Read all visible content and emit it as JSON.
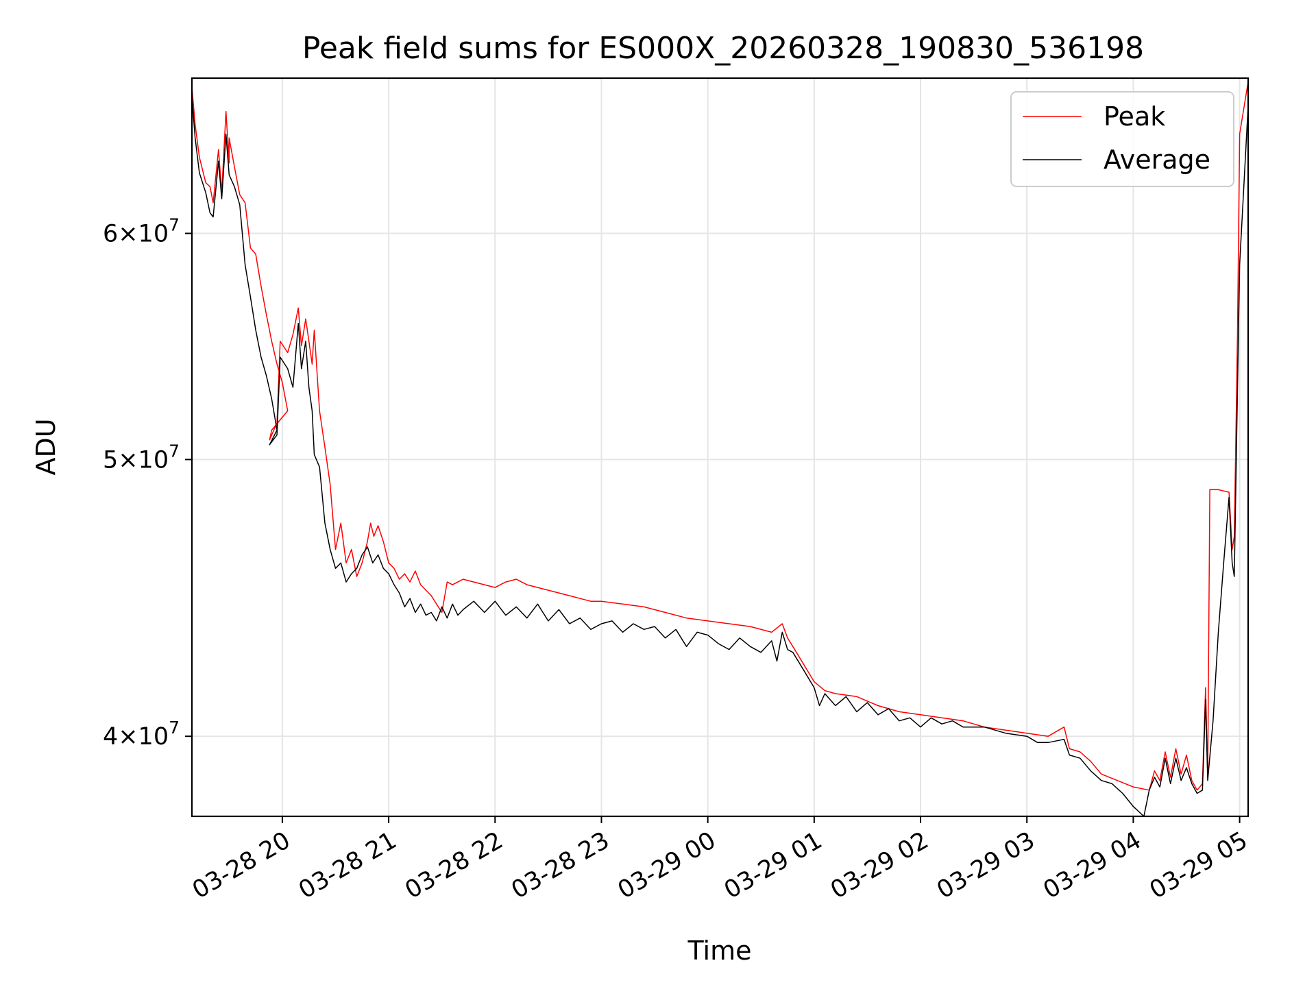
{
  "chart_data": {
    "type": "line",
    "title": "Peak field sums for ES000X_20260328_190830_536198",
    "xlabel": "Time",
    "ylabel": "ADU",
    "y_scale": "log",
    "xlim_hours": [
      -0.85,
      9.08
    ],
    "ylim": [
      37500000,
      68000000
    ],
    "x_ticks": [
      {
        "label": "03-28 20",
        "hour": 0
      },
      {
        "label": "03-28 21",
        "hour": 1
      },
      {
        "label": "03-28 22",
        "hour": 2
      },
      {
        "label": "03-28 23",
        "hour": 3
      },
      {
        "label": "03-29 00",
        "hour": 4
      },
      {
        "label": "03-29 01",
        "hour": 5
      },
      {
        "label": "03-29 02",
        "hour": 6
      },
      {
        "label": "03-29 03",
        "hour": 7
      },
      {
        "label": "03-29 04",
        "hour": 8
      },
      {
        "label": "03-29 05",
        "hour": 9
      }
    ],
    "y_ticks": [
      {
        "value": 40000000,
        "base": "4",
        "sep": "×",
        "power": "10",
        "exp": "7"
      },
      {
        "value": 50000000,
        "base": "5",
        "sep": "×",
        "power": "10",
        "exp": "7"
      },
      {
        "value": 60000000,
        "base": "6",
        "sep": "×",
        "power": "10",
        "exp": "7"
      }
    ],
    "grid": true,
    "legend_position": "top-right",
    "series": [
      {
        "name": "Peak",
        "color": "#ff0000",
        "points": [
          [
            -0.85,
            67.5
          ],
          [
            -0.82,
            65.5
          ],
          [
            -0.78,
            63.8
          ],
          [
            -0.72,
            62.5
          ],
          [
            -0.68,
            62.3
          ],
          [
            -0.65,
            61.5
          ],
          [
            -0.6,
            64.2
          ],
          [
            -0.57,
            62.0
          ],
          [
            -0.53,
            66.2
          ],
          [
            -0.5,
            63.5
          ],
          [
            -0.5,
            64.8
          ],
          [
            -0.45,
            63.3
          ],
          [
            -0.4,
            61.9
          ],
          [
            -0.35,
            61.5
          ],
          [
            -0.3,
            59.3
          ],
          [
            -0.25,
            59.0
          ],
          [
            -0.2,
            57.5
          ],
          [
            -0.15,
            56.2
          ],
          [
            -0.1,
            55.0
          ],
          [
            -0.05,
            54.0
          ],
          [
            0.0,
            53.2
          ],
          [
            0.05,
            52.0
          ],
          [
            -0.1,
            51.2
          ],
          [
            -0.12,
            50.8
          ],
          [
            -0.05,
            51.5
          ],
          [
            -0.02,
            55.0
          ],
          [
            0.05,
            54.5
          ],
          [
            0.1,
            55.3
          ],
          [
            0.15,
            56.5
          ],
          [
            0.18,
            54.8
          ],
          [
            0.22,
            56.0
          ],
          [
            0.25,
            55.0
          ],
          [
            0.28,
            54.0
          ],
          [
            0.3,
            55.5
          ],
          [
            0.35,
            52.0
          ],
          [
            0.4,
            50.5
          ],
          [
            0.45,
            49.0
          ],
          [
            0.5,
            46.5
          ],
          [
            0.55,
            47.5
          ],
          [
            0.6,
            46.0
          ],
          [
            0.65,
            46.5
          ],
          [
            0.7,
            45.5
          ],
          [
            0.75,
            46.0
          ],
          [
            0.8,
            46.8
          ],
          [
            0.83,
            47.5
          ],
          [
            0.86,
            47.0
          ],
          [
            0.9,
            47.4
          ],
          [
            0.95,
            46.8
          ],
          [
            1.0,
            46.0
          ],
          [
            1.05,
            45.8
          ],
          [
            1.1,
            45.4
          ],
          [
            1.15,
            45.6
          ],
          [
            1.2,
            45.3
          ],
          [
            1.25,
            45.7
          ],
          [
            1.3,
            45.2
          ],
          [
            1.35,
            45.0
          ],
          [
            1.4,
            44.8
          ],
          [
            1.45,
            44.5
          ],
          [
            1.5,
            44.2
          ],
          [
            1.55,
            45.3
          ],
          [
            1.6,
            45.2
          ],
          [
            1.7,
            45.4
          ],
          [
            1.8,
            45.3
          ],
          [
            1.9,
            45.2
          ],
          [
            2.0,
            45.1
          ],
          [
            2.1,
            45.3
          ],
          [
            2.2,
            45.4
          ],
          [
            2.3,
            45.2
          ],
          [
            2.4,
            45.1
          ],
          [
            2.5,
            45.0
          ],
          [
            2.6,
            44.9
          ],
          [
            2.7,
            44.8
          ],
          [
            2.8,
            44.7
          ],
          [
            2.9,
            44.6
          ],
          [
            3.0,
            44.6
          ],
          [
            3.2,
            44.5
          ],
          [
            3.4,
            44.4
          ],
          [
            3.6,
            44.2
          ],
          [
            3.8,
            44.0
          ],
          [
            4.0,
            43.9
          ],
          [
            4.2,
            43.8
          ],
          [
            4.4,
            43.7
          ],
          [
            4.6,
            43.5
          ],
          [
            4.7,
            43.8
          ],
          [
            4.75,
            43.3
          ],
          [
            4.8,
            43.0
          ],
          [
            4.9,
            42.4
          ],
          [
            5.0,
            41.8
          ],
          [
            5.1,
            41.5
          ],
          [
            5.2,
            41.4
          ],
          [
            5.4,
            41.3
          ],
          [
            5.6,
            41.0
          ],
          [
            5.8,
            40.8
          ],
          [
            6.0,
            40.7
          ],
          [
            6.2,
            40.6
          ],
          [
            6.4,
            40.5
          ],
          [
            6.6,
            40.3
          ],
          [
            6.8,
            40.2
          ],
          [
            7.0,
            40.1
          ],
          [
            7.2,
            40.0
          ],
          [
            7.35,
            40.3
          ],
          [
            7.4,
            39.6
          ],
          [
            7.5,
            39.5
          ],
          [
            7.6,
            39.2
          ],
          [
            7.7,
            38.8
          ],
          [
            7.85,
            38.6
          ],
          [
            8.0,
            38.4
          ],
          [
            8.15,
            38.3
          ],
          [
            8.2,
            38.9
          ],
          [
            8.25,
            38.6
          ],
          [
            8.3,
            39.5
          ],
          [
            8.35,
            38.7
          ],
          [
            8.4,
            39.6
          ],
          [
            8.45,
            38.8
          ],
          [
            8.5,
            39.4
          ],
          [
            8.55,
            38.6
          ],
          [
            8.6,
            38.3
          ],
          [
            8.65,
            38.5
          ],
          [
            8.68,
            41.6
          ],
          [
            8.7,
            38.7
          ],
          [
            8.72,
            48.8
          ],
          [
            8.8,
            48.8
          ],
          [
            8.9,
            48.7
          ],
          [
            8.93,
            46.5
          ],
          [
            8.95,
            47.0
          ],
          [
            8.98,
            55.4
          ],
          [
            9.0,
            65.0
          ],
          [
            9.08,
            67.8
          ]
        ]
      },
      {
        "name": "Average",
        "color": "#000000",
        "points": [
          [
            -0.85,
            67.0
          ],
          [
            -0.82,
            64.8
          ],
          [
            -0.78,
            63.0
          ],
          [
            -0.72,
            62.0
          ],
          [
            -0.68,
            61.0
          ],
          [
            -0.65,
            60.8
          ],
          [
            -0.6,
            63.6
          ],
          [
            -0.57,
            61.7
          ],
          [
            -0.53,
            65.0
          ],
          [
            -0.5,
            62.9
          ],
          [
            -0.45,
            62.3
          ],
          [
            -0.4,
            61.4
          ],
          [
            -0.35,
            58.5
          ],
          [
            -0.3,
            57.0
          ],
          [
            -0.25,
            55.5
          ],
          [
            -0.2,
            54.3
          ],
          [
            -0.15,
            53.5
          ],
          [
            -0.1,
            52.5
          ],
          [
            -0.05,
            51.2
          ],
          [
            -0.12,
            50.6
          ],
          [
            -0.05,
            51.0
          ],
          [
            -0.02,
            54.3
          ],
          [
            0.05,
            53.8
          ],
          [
            0.1,
            53.0
          ],
          [
            0.15,
            55.8
          ],
          [
            0.18,
            53.8
          ],
          [
            0.22,
            55.0
          ],
          [
            0.25,
            53.0
          ],
          [
            0.28,
            52.0
          ],
          [
            0.3,
            50.2
          ],
          [
            0.35,
            49.7
          ],
          [
            0.4,
            47.5
          ],
          [
            0.45,
            46.5
          ],
          [
            0.5,
            45.8
          ],
          [
            0.55,
            46.0
          ],
          [
            0.6,
            45.3
          ],
          [
            0.65,
            45.6
          ],
          [
            0.7,
            45.8
          ],
          [
            0.75,
            46.3
          ],
          [
            0.8,
            46.6
          ],
          [
            0.85,
            46.0
          ],
          [
            0.9,
            46.3
          ],
          [
            0.95,
            45.8
          ],
          [
            1.0,
            45.6
          ],
          [
            1.05,
            45.2
          ],
          [
            1.1,
            44.9
          ],
          [
            1.15,
            44.4
          ],
          [
            1.2,
            44.7
          ],
          [
            1.25,
            44.2
          ],
          [
            1.3,
            44.5
          ],
          [
            1.35,
            44.1
          ],
          [
            1.4,
            44.2
          ],
          [
            1.45,
            43.9
          ],
          [
            1.5,
            44.4
          ],
          [
            1.55,
            44.0
          ],
          [
            1.6,
            44.5
          ],
          [
            1.65,
            44.1
          ],
          [
            1.7,
            44.3
          ],
          [
            1.8,
            44.6
          ],
          [
            1.9,
            44.2
          ],
          [
            2.0,
            44.6
          ],
          [
            2.1,
            44.1
          ],
          [
            2.2,
            44.4
          ],
          [
            2.3,
            44.0
          ],
          [
            2.4,
            44.5
          ],
          [
            2.5,
            43.9
          ],
          [
            2.6,
            44.3
          ],
          [
            2.7,
            43.8
          ],
          [
            2.8,
            44.0
          ],
          [
            2.9,
            43.6
          ],
          [
            3.0,
            43.8
          ],
          [
            3.1,
            43.9
          ],
          [
            3.2,
            43.5
          ],
          [
            3.3,
            43.8
          ],
          [
            3.4,
            43.6
          ],
          [
            3.5,
            43.7
          ],
          [
            3.6,
            43.3
          ],
          [
            3.7,
            43.6
          ],
          [
            3.8,
            43.0
          ],
          [
            3.9,
            43.5
          ],
          [
            4.0,
            43.4
          ],
          [
            4.1,
            43.1
          ],
          [
            4.2,
            42.9
          ],
          [
            4.3,
            43.3
          ],
          [
            4.4,
            43.0
          ],
          [
            4.5,
            42.8
          ],
          [
            4.6,
            43.2
          ],
          [
            4.65,
            42.5
          ],
          [
            4.7,
            43.5
          ],
          [
            4.75,
            42.9
          ],
          [
            4.8,
            42.8
          ],
          [
            4.9,
            42.2
          ],
          [
            5.0,
            41.6
          ],
          [
            5.05,
            41.0
          ],
          [
            5.1,
            41.4
          ],
          [
            5.2,
            41.0
          ],
          [
            5.3,
            41.3
          ],
          [
            5.4,
            40.8
          ],
          [
            5.5,
            41.1
          ],
          [
            5.6,
            40.7
          ],
          [
            5.7,
            40.9
          ],
          [
            5.8,
            40.5
          ],
          [
            5.9,
            40.6
          ],
          [
            6.0,
            40.3
          ],
          [
            6.1,
            40.6
          ],
          [
            6.2,
            40.4
          ],
          [
            6.3,
            40.5
          ],
          [
            6.4,
            40.3
          ],
          [
            6.6,
            40.3
          ],
          [
            6.8,
            40.1
          ],
          [
            7.0,
            40.0
          ],
          [
            7.1,
            39.8
          ],
          [
            7.2,
            39.8
          ],
          [
            7.35,
            39.9
          ],
          [
            7.4,
            39.4
          ],
          [
            7.5,
            39.3
          ],
          [
            7.6,
            38.9
          ],
          [
            7.7,
            38.6
          ],
          [
            7.8,
            38.5
          ],
          [
            7.9,
            38.2
          ],
          [
            8.0,
            37.8
          ],
          [
            8.1,
            37.5
          ],
          [
            8.15,
            38.3
          ],
          [
            8.2,
            38.7
          ],
          [
            8.25,
            38.4
          ],
          [
            8.3,
            39.3
          ],
          [
            8.35,
            38.5
          ],
          [
            8.4,
            39.3
          ],
          [
            8.45,
            38.6
          ],
          [
            8.5,
            39.0
          ],
          [
            8.55,
            38.5
          ],
          [
            8.6,
            38.2
          ],
          [
            8.65,
            38.3
          ],
          [
            8.68,
            41.2
          ],
          [
            8.7,
            38.6
          ],
          [
            8.75,
            40.5
          ],
          [
            8.8,
            43.5
          ],
          [
            8.85,
            46.0
          ],
          [
            8.9,
            48.5
          ],
          [
            8.93,
            46.0
          ],
          [
            8.95,
            45.5
          ],
          [
            8.98,
            53.0
          ],
          [
            9.0,
            58.5
          ],
          [
            9.08,
            66.5
          ]
        ]
      }
    ]
  }
}
